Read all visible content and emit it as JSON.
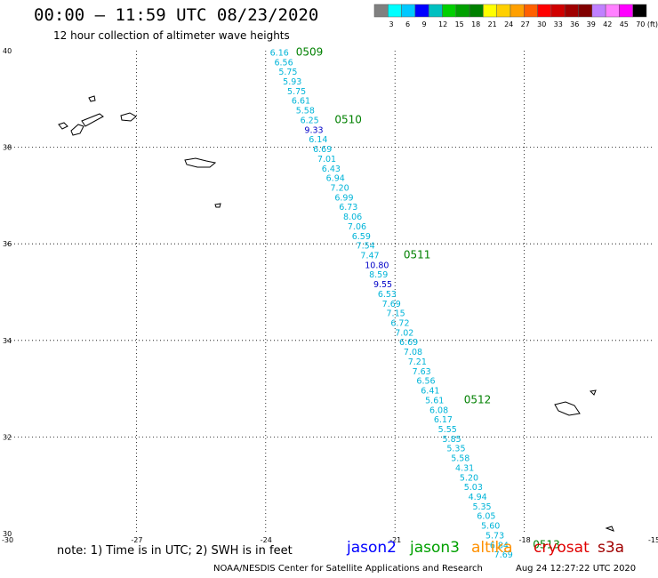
{
  "header": {
    "title": "00:00 — 11:59 UTC 08/23/2020",
    "subtitle": "12 hour collection of altimeter wave heights"
  },
  "scale": {
    "colors": [
      "#808080",
      "#00ffff",
      "#00c8ff",
      "#0000ff",
      "#00c0c0",
      "#00d000",
      "#00a000",
      "#008000",
      "#ffff00",
      "#ffd000",
      "#ffa000",
      "#ff6000",
      "#ff0000",
      "#d00000",
      "#a00000",
      "#800000",
      "#c080ff",
      "#ff80ff",
      "#ff00ff",
      "#000000"
    ],
    "labels": [
      "3",
      "6",
      "9",
      "12",
      "15",
      "18",
      "21",
      "24",
      "27",
      "30",
      "33",
      "36",
      "39",
      "42",
      "45",
      "70 (ft)"
    ]
  },
  "axes": {
    "lat_labels": [
      "40",
      "38",
      "36",
      "34",
      "32",
      "30"
    ],
    "lon_labels": [
      "-30",
      "-27",
      "-24",
      "-21",
      "-18",
      "-15"
    ]
  },
  "chart_data": {
    "type": "scatter",
    "xlabel": "",
    "ylabel": "",
    "xlim": [
      -30,
      -15
    ],
    "ylim": [
      30,
      40
    ],
    "grid": true,
    "series": [
      {
        "name": "jason3",
        "color": "#00b4d8",
        "points": [
          {
            "lon": -23.9,
            "lat": 39.9,
            "v": "6.16"
          },
          {
            "lon": -23.8,
            "lat": 39.7,
            "v": "6.56"
          },
          {
            "lon": -23.7,
            "lat": 39.5,
            "v": "5.75"
          },
          {
            "lon": -23.6,
            "lat": 39.3,
            "v": "5.93"
          },
          {
            "lon": -23.5,
            "lat": 39.1,
            "v": "5.75"
          },
          {
            "lon": -23.4,
            "lat": 38.9,
            "v": "6.61"
          },
          {
            "lon": -23.3,
            "lat": 38.7,
            "v": "5.58"
          },
          {
            "lon": -23.2,
            "lat": 38.5,
            "v": "6.25"
          },
          {
            "lon": -23.1,
            "lat": 38.3,
            "v": "9.33",
            "c": "#0000c8"
          },
          {
            "lon": -23.0,
            "lat": 38.1,
            "v": "6.14"
          },
          {
            "lon": -22.9,
            "lat": 37.9,
            "v": "6.69"
          },
          {
            "lon": -22.8,
            "lat": 37.7,
            "v": "7.01"
          },
          {
            "lon": -22.7,
            "lat": 37.5,
            "v": "6.43"
          },
          {
            "lon": -22.6,
            "lat": 37.3,
            "v": "6.94"
          },
          {
            "lon": -22.5,
            "lat": 37.1,
            "v": "7.20"
          },
          {
            "lon": -22.4,
            "lat": 36.9,
            "v": "6.99"
          },
          {
            "lon": -22.3,
            "lat": 36.7,
            "v": "6.73"
          },
          {
            "lon": -22.2,
            "lat": 36.5,
            "v": "8.06"
          },
          {
            "lon": -22.1,
            "lat": 36.3,
            "v": "7.06"
          },
          {
            "lon": -22.0,
            "lat": 36.1,
            "v": "6.59"
          },
          {
            "lon": -21.9,
            "lat": 35.9,
            "v": "7.54"
          },
          {
            "lon": -21.8,
            "lat": 35.7,
            "v": "7.47"
          },
          {
            "lon": -21.7,
            "lat": 35.5,
            "v": "10.80",
            "c": "#0000c8"
          },
          {
            "lon": -21.6,
            "lat": 35.3,
            "v": "8.59"
          },
          {
            "lon": -21.5,
            "lat": 35.1,
            "v": "9.55",
            "c": "#0000c8"
          },
          {
            "lon": -21.4,
            "lat": 34.9,
            "v": "6.53"
          },
          {
            "lon": -21.3,
            "lat": 34.7,
            "v": "7.69"
          },
          {
            "lon": -21.2,
            "lat": 34.5,
            "v": "7.15"
          },
          {
            "lon": -21.1,
            "lat": 34.3,
            "v": "6.72"
          },
          {
            "lon": -21.0,
            "lat": 34.1,
            "v": "7.02"
          },
          {
            "lon": -20.9,
            "lat": 33.9,
            "v": "6.69"
          },
          {
            "lon": -20.8,
            "lat": 33.7,
            "v": "7.08"
          },
          {
            "lon": -20.7,
            "lat": 33.5,
            "v": "7.21"
          },
          {
            "lon": -20.6,
            "lat": 33.3,
            "v": "7.63"
          },
          {
            "lon": -20.5,
            "lat": 33.1,
            "v": "6.56"
          },
          {
            "lon": -20.4,
            "lat": 32.9,
            "v": "6.41"
          },
          {
            "lon": -20.3,
            "lat": 32.7,
            "v": "5.61"
          },
          {
            "lon": -20.2,
            "lat": 32.5,
            "v": "6.08"
          },
          {
            "lon": -20.1,
            "lat": 32.3,
            "v": "6.17"
          },
          {
            "lon": -20.0,
            "lat": 32.1,
            "v": "5.55"
          },
          {
            "lon": -19.9,
            "lat": 31.9,
            "v": "5.85"
          },
          {
            "lon": -19.8,
            "lat": 31.7,
            "v": "5.35"
          },
          {
            "lon": -19.7,
            "lat": 31.5,
            "v": "5.58"
          },
          {
            "lon": -19.6,
            "lat": 31.3,
            "v": "4.31"
          },
          {
            "lon": -19.5,
            "lat": 31.1,
            "v": "5.20"
          },
          {
            "lon": -19.4,
            "lat": 30.9,
            "v": "5.03"
          },
          {
            "lon": -19.3,
            "lat": 30.7,
            "v": "4.94"
          },
          {
            "lon": -19.2,
            "lat": 30.5,
            "v": "5.35"
          },
          {
            "lon": -19.1,
            "lat": 30.3,
            "v": "6.05"
          },
          {
            "lon": -19.0,
            "lat": 30.1,
            "v": "5.60"
          },
          {
            "lon": -18.9,
            "lat": 29.9,
            "v": "5.73"
          },
          {
            "lon": -18.8,
            "lat": 29.7,
            "v": "6.84"
          },
          {
            "lon": -18.7,
            "lat": 29.5,
            "v": "7.69"
          }
        ]
      }
    ],
    "pass_labels": [
      {
        "text": "0509",
        "lon": -23.3,
        "lat": 39.9
      },
      {
        "text": "0510",
        "lon": -22.4,
        "lat": 38.5
      },
      {
        "text": "0511",
        "lon": -20.8,
        "lat": 35.7
      },
      {
        "text": "0512",
        "lon": -19.4,
        "lat": 32.7
      },
      {
        "text": "0513",
        "lon": -17.8,
        "lat": 29.7
      }
    ]
  },
  "note": "note: 1) Time is in UTC; 2) SWH is in feet",
  "satellites": [
    {
      "name": "jason2",
      "color": "#0000ff"
    },
    {
      "name": "jason3",
      "color": "#00a000"
    },
    {
      "name": "altika",
      "color": "#ff9000"
    },
    {
      "name": "cryosat",
      "color": "#e00000"
    },
    {
      "name": "s3a",
      "color": "#a00000"
    }
  ],
  "footer": {
    "center": "NOAA/NESDIS Center for Satellite Applications and Research",
    "time": "Aug 24 12:27:22 UTC 2020"
  }
}
